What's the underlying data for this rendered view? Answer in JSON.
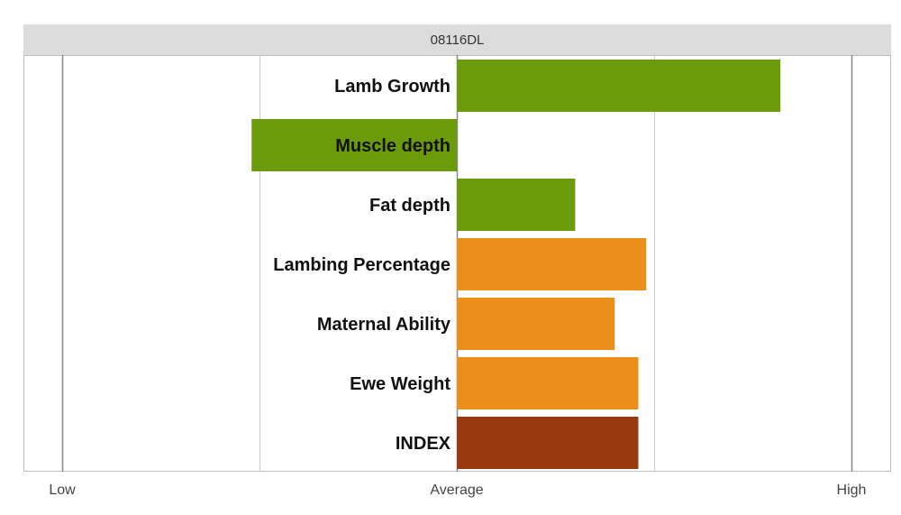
{
  "chart_data": {
    "type": "bar",
    "orientation": "horizontal",
    "title": "08116DL",
    "categories": [
      "Lamb Growth",
      "Muscle depth",
      "Fat depth",
      "Lambing Percentage",
      "Maternal Ability",
      "Ewe Weight",
      "INDEX"
    ],
    "values": [
      0.82,
      -0.52,
      0.3,
      0.48,
      0.4,
      0.46,
      0.46
    ],
    "colors": [
      "#6b9a0a",
      "#6b9a0a",
      "#6b9a0a",
      "#ec8f1a",
      "#ec8f1a",
      "#ec8f1a",
      "#973a12"
    ],
    "xlim": [
      -1,
      1
    ],
    "x_tick_labels": [
      "Low",
      "Average",
      "High"
    ],
    "grid": true
  }
}
